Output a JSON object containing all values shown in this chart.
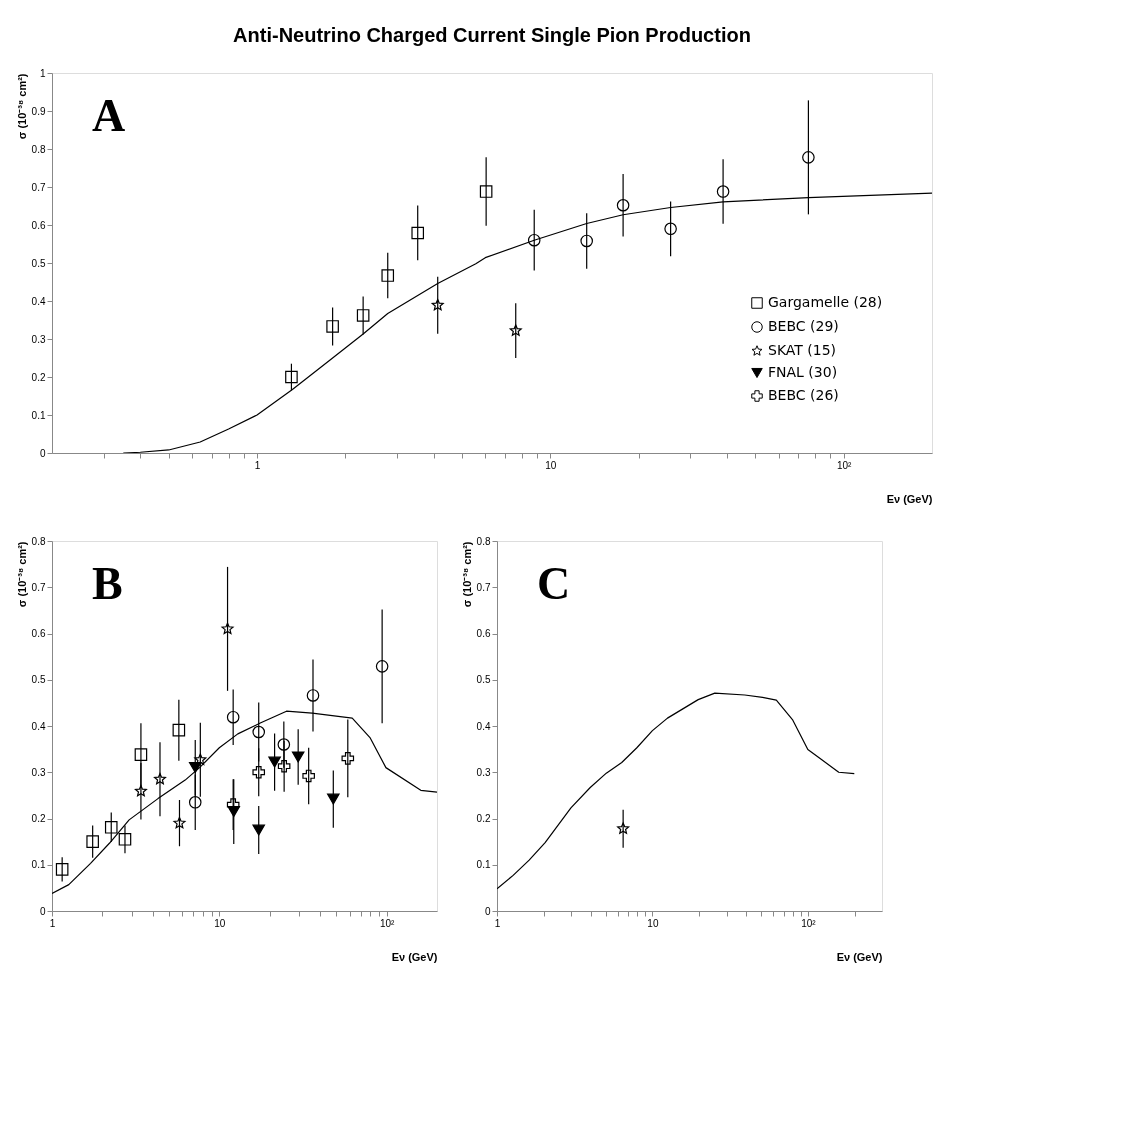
{
  "chart_data": [
    {
      "type": "scatter",
      "title": "Anti-Neutrino Charged Current Single Pion Production",
      "xlabel": "Eν (GeV)",
      "ylabel": "σ (10⁻³⁸ cm²)",
      "log": "x",
      "legend": "bottom right",
      "annotations": [
        "A"
      ],
      "xlim": [
        0.2,
        200
      ],
      "ylim": [
        0,
        1
      ],
      "xticks": [
        {
          "value": 0.3,
          "label": null
        },
        {
          "value": 0.4,
          "label": null
        },
        {
          "value": 0.5,
          "label": null
        },
        {
          "value": 0.6,
          "label": null
        },
        {
          "value": 0.7,
          "label": null
        },
        {
          "value": 0.8,
          "label": null
        },
        {
          "value": 0.9,
          "label": null
        },
        1,
        {
          "value": 2,
          "label": null
        },
        {
          "value": 3,
          "label": null
        },
        {
          "value": 4,
          "label": null
        },
        {
          "value": 5,
          "label": null
        },
        {
          "value": 6,
          "label": null
        },
        {
          "value": 7,
          "label": null
        },
        {
          "value": 8,
          "label": null
        },
        {
          "value": 9,
          "label": null
        },
        10,
        {
          "value": 20,
          "label": null
        },
        {
          "value": 30,
          "label": null
        },
        {
          "value": 40,
          "label": null
        },
        {
          "value": 50,
          "label": null
        },
        {
          "value": 60,
          "label": null
        },
        {
          "value": 70,
          "label": null
        },
        {
          "value": 80,
          "label": null
        },
        {
          "value": 90,
          "label": null
        },
        {
          "value": 100,
          "label": "10²"
        }
      ],
      "yticks": [
        0,
        0.1,
        0.2,
        0.3,
        0.4,
        0.5,
        0.6,
        0.7,
        0.8,
        0.9,
        1
      ],
      "series": [
        {
          "type": "line",
          "color": "#000000",
          "x": [
            0.35,
            0.4,
            0.5,
            0.64,
            0.8,
            1,
            1.32,
            1.81,
            2.3,
            2.79,
            4.13,
            5.57,
            6.0,
            8.81,
            13.3,
            17.7,
            25.7,
            38.8,
            75.8,
            200
          ],
          "values": [
            0,
            0.002,
            0.008,
            0.029,
            0.063,
            0.1,
            0.167,
            0.25,
            0.313,
            0.367,
            0.446,
            0.498,
            0.514,
            0.56,
            0.604,
            0.627,
            0.646,
            0.661,
            0.672,
            0.684
          ]
        },
        {
          "name": "Gargamelle (28)",
          "color": "#000000",
          "marker": "square",
          "x": [
            1.31,
            1.81,
            2.3,
            2.79,
            3.53,
            6.04
          ],
          "values": [
            0.2,
            0.333,
            0.362,
            0.467,
            0.579,
            0.688
          ],
          "errors": [
            0.035,
            0.05,
            0.05,
            0.06,
            0.072,
            0.09
          ]
        },
        {
          "name": "BEBC (29)",
          "color": "#000000",
          "marker": "circle",
          "x": [
            8.81,
            13.3,
            17.7,
            25.7,
            38.8,
            75.8
          ],
          "values": [
            0.56,
            0.558,
            0.652,
            0.59,
            0.688,
            0.778
          ],
          "errors": [
            0.08,
            0.073,
            0.082,
            0.072,
            0.085,
            0.15
          ]
        },
        {
          "name": "SKAT (15)",
          "color": "#000000",
          "marker": "star",
          "x": [
            4.13,
            7.62
          ],
          "values": [
            0.389,
            0.322
          ],
          "errors": [
            0.075,
            0.072
          ]
        },
        {
          "type": "scatter",
          "name": "FNAL (30)",
          "color": "#000000",
          "marker": "triangle"
        },
        {
          "type": "scatter",
          "name": "BEBC (26)",
          "color": "#000000",
          "marker": "cross"
        }
      ]
    },
    {
      "type": "scatter",
      "xlabel": "Eν (GeV)",
      "ylabel": "σ (10⁻³⁸ cm²)",
      "log": "x",
      "annotations": [
        "B"
      ],
      "xlim": [
        1,
        200
      ],
      "ylim": [
        0,
        0.8
      ],
      "xticks": [
        1,
        {
          "value": 2,
          "label": null
        },
        {
          "value": 3,
          "label": null
        },
        {
          "value": 4,
          "label": null
        },
        {
          "value": 5,
          "label": null
        },
        {
          "value": 6,
          "label": null
        },
        {
          "value": 7,
          "label": null
        },
        {
          "value": 8,
          "label": null
        },
        {
          "value": 9,
          "label": null
        },
        10,
        {
          "value": 20,
          "label": null
        },
        {
          "value": 30,
          "label": null
        },
        {
          "value": 40,
          "label": null
        },
        {
          "value": 50,
          "label": null
        },
        {
          "value": 60,
          "label": null
        },
        {
          "value": 70,
          "label": null
        },
        {
          "value": 80,
          "label": null
        },
        {
          "value": 90,
          "label": null
        },
        {
          "value": 100,
          "label": "10²"
        }
      ],
      "yticks": [
        0,
        0.1,
        0.2,
        0.3,
        0.4,
        0.5,
        0.6,
        0.7,
        0.8
      ],
      "series": [
        {
          "type": "line",
          "color": "#000000",
          "x": [
            1,
            1.26,
            1.7,
            2.21,
            2.89,
            4.3,
            6.25,
            7.62,
            10,
            12.9,
            17.7,
            25.2,
            35.9,
            62.3,
            79.5,
            99,
            160,
            200
          ],
          "values": [
            0.038,
            0.057,
            0.103,
            0.147,
            0.197,
            0.243,
            0.283,
            0.31,
            0.353,
            0.383,
            0.407,
            0.432,
            0.428,
            0.417,
            0.375,
            0.31,
            0.261,
            0.257
          ]
        },
        {
          "color": "#000000",
          "marker": "square",
          "x": [
            1.15,
            1.75,
            2.26,
            2.73,
            3.4,
            5.73
          ],
          "values": [
            0.09,
            0.15,
            0.181,
            0.155,
            0.338,
            0.391
          ],
          "errors": [
            0.026,
            0.035,
            0.032,
            0.03,
            0.068,
            0.066
          ]
        },
        {
          "color": "#000000",
          "marker": "circle",
          "x": [
            7.18,
            12.1,
            17.2,
            24.3,
            36.3,
            94
          ],
          "values": [
            0.235,
            0.419,
            0.387,
            0.36,
            0.466,
            0.529
          ],
          "errors": [
            0.06,
            0.06,
            0.064,
            0.05,
            0.078,
            0.123
          ]
        },
        {
          "color": "#000000",
          "marker": "star",
          "x": [
            3.4,
            4.42,
            5.78,
            7.7,
            11.2
          ],
          "values": [
            0.259,
            0.285,
            0.19,
            0.327,
            0.61
          ],
          "errors": [
            0.061,
            0.08,
            0.05,
            0.08,
            0.134
          ]
        },
        {
          "color": "#000000",
          "marker": "triangle",
          "x": [
            7.18,
            12.2,
            17.2,
            21.4,
            29.6,
            48
          ],
          "values": [
            0.31,
            0.215,
            0.175,
            0.322,
            0.333,
            0.242
          ],
          "errors": [
            0.06,
            0.07,
            0.052,
            0.062,
            0.06,
            0.062
          ]
        },
        {
          "color": "#000000",
          "marker": "cross",
          "x": [
            12.1,
            17.2,
            24.4,
            34.2,
            58.6
          ],
          "values": [
            0.23,
            0.3,
            0.313,
            0.292,
            0.33
          ],
          "errors": [
            0.055,
            0.052,
            0.055,
            0.061,
            0.084
          ]
        }
      ]
    },
    {
      "type": "scatter",
      "xlabel": "Eν (GeV)",
      "ylabel": "σ (10⁻³⁸ cm²)",
      "log": "x",
      "annotations": [
        "C"
      ],
      "xlim": [
        1,
        300
      ],
      "ylim": [
        0,
        0.8
      ],
      "xticks": [
        1,
        {
          "value": 2,
          "label": null
        },
        {
          "value": 3,
          "label": null
        },
        {
          "value": 4,
          "label": null
        },
        {
          "value": 5,
          "label": null
        },
        {
          "value": 6,
          "label": null
        },
        {
          "value": 7,
          "label": null
        },
        {
          "value": 8,
          "label": null
        },
        {
          "value": 9,
          "label": null
        },
        10,
        {
          "value": 20,
          "label": null
        },
        {
          "value": 30,
          "label": null
        },
        {
          "value": 40,
          "label": null
        },
        {
          "value": 50,
          "label": null
        },
        {
          "value": 60,
          "label": null
        },
        {
          "value": 70,
          "label": null
        },
        {
          "value": 80,
          "label": null
        },
        {
          "value": 90,
          "label": null
        },
        {
          "value": 100,
          "label": "10²"
        },
        {
          "value": 200,
          "label": null
        }
      ],
      "yticks": [
        0,
        0.1,
        0.2,
        0.3,
        0.4,
        0.5,
        0.6,
        0.7,
        0.8
      ],
      "series": [
        {
          "type": "line",
          "color": "#000000",
          "x": [
            1,
            1.27,
            1.61,
            2.04,
            2.99,
            3.98,
            5.05,
            6.35,
            7.94,
            10,
            12.5,
            19.7,
            25.2,
            39.3,
            51.1,
            62.7,
            79.6,
            100,
            123,
            158,
            199
          ],
          "values": [
            0.048,
            0.077,
            0.11,
            0.148,
            0.223,
            0.267,
            0.298,
            0.321,
            0.353,
            0.39,
            0.417,
            0.457,
            0.471,
            0.467,
            0.462,
            0.456,
            0.414,
            0.349,
            0.327,
            0.3,
            0.297
          ]
        },
        {
          "color": "#000000",
          "marker": "star",
          "x": [
            6.48
          ],
          "values": [
            0.178
          ],
          "errors": [
            0.041
          ]
        }
      ]
    }
  ]
}
